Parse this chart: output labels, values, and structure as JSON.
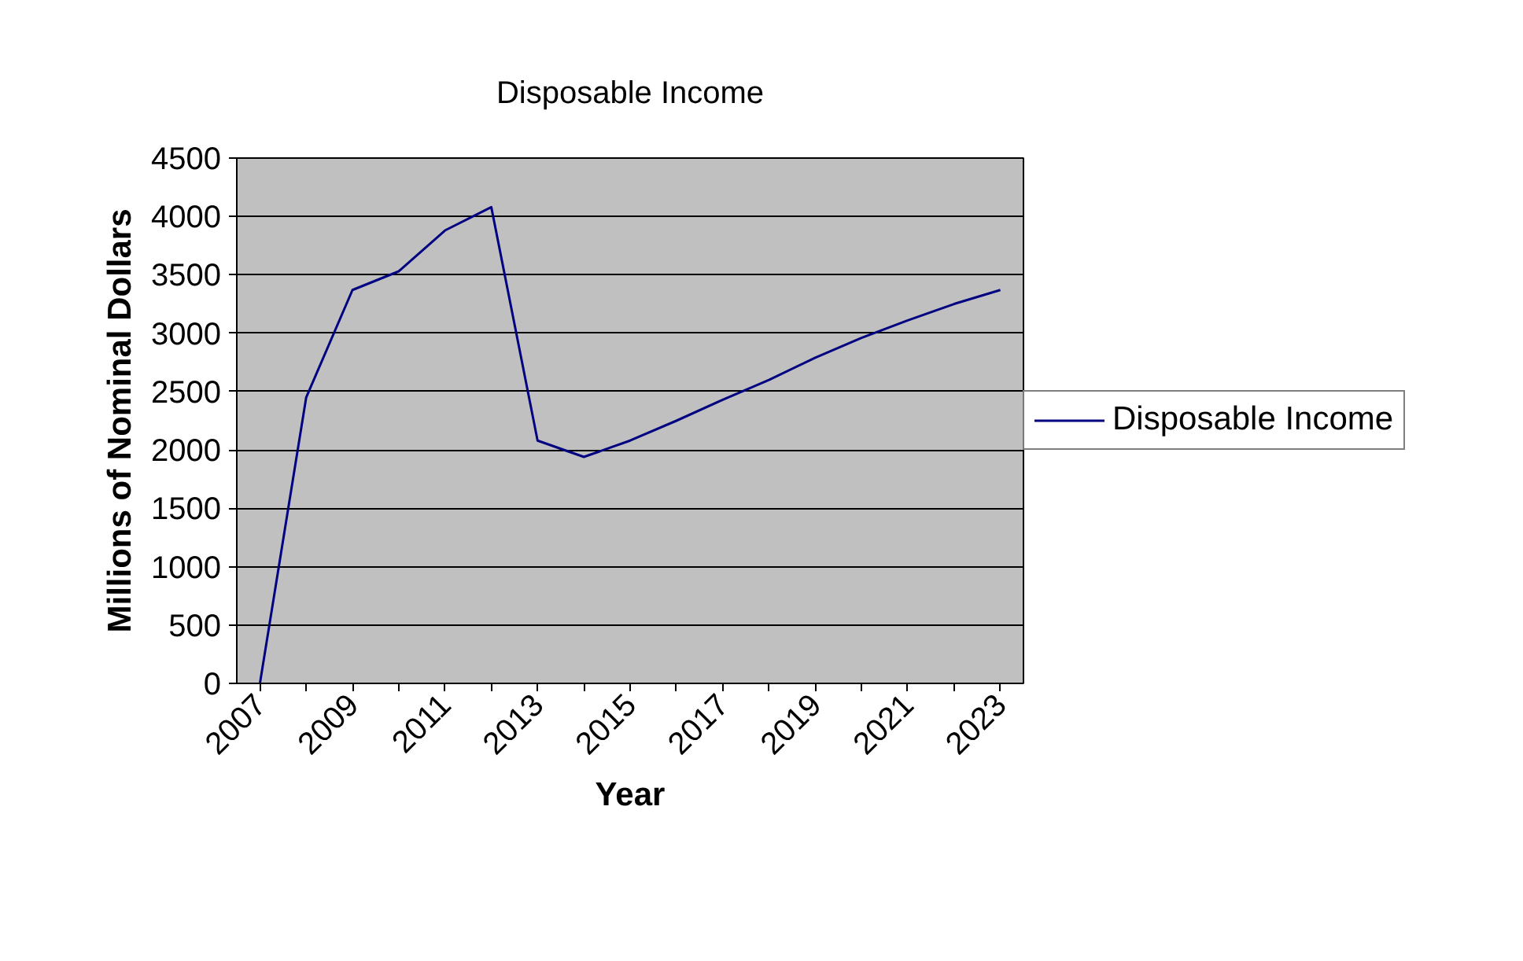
{
  "chart_data": {
    "type": "line",
    "title": "Disposable Income",
    "xlabel": "Year",
    "ylabel": "Millions of Nominal Dollars",
    "categories": [
      "2007",
      null,
      "2009",
      null,
      "2011",
      null,
      "2013",
      null,
      "2015",
      null,
      "2017",
      null,
      "2019",
      null,
      "2021",
      null,
      "2023"
    ],
    "series": [
      {
        "name": "Disposable Income",
        "color": "#000080",
        "values": [
          0,
          2450,
          3370,
          3530,
          3880,
          4080,
          2080,
          1940,
          2080,
          2250,
          2430,
          2600,
          2790,
          2960,
          3110,
          3250,
          3370
        ]
      }
    ],
    "ylim": [
      0,
      4500
    ],
    "yticks": [
      0,
      500,
      1000,
      1500,
      2000,
      2500,
      3000,
      3500,
      4000,
      4500
    ],
    "grid": "y",
    "legend": "right",
    "marker": "none",
    "line_style": "solid"
  }
}
